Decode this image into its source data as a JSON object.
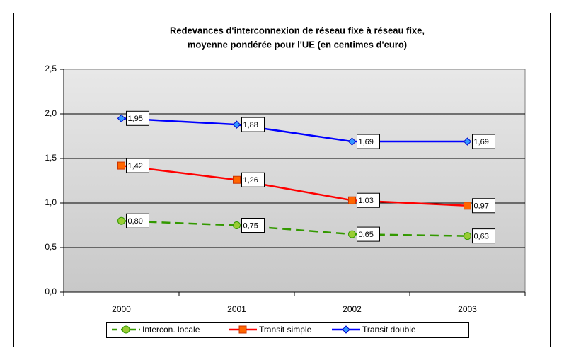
{
  "chart_data": {
    "type": "line",
    "title": [
      "Redevances d'interconnexion de réseau fixe à réseau fixe,",
      "moyenne pondérée pour l'UE (en centimes d'euro)"
    ],
    "categories": [
      "2000",
      "2001",
      "2002",
      "2003"
    ],
    "series": [
      {
        "name": "Intercon. locale",
        "color": "#339900",
        "marker_color": "#99cc33",
        "marker": "circle",
        "dashed": true,
        "values": [
          0.8,
          0.75,
          0.65,
          0.63
        ],
        "value_labels": [
          "0,80",
          "0,75",
          "0,65",
          "0,63"
        ]
      },
      {
        "name": "Transit simple",
        "color": "#ff0000",
        "marker_color": "#ff6600",
        "marker": "square",
        "dashed": false,
        "values": [
          1.42,
          1.26,
          1.03,
          0.97
        ],
        "value_labels": [
          "1,42",
          "1,26",
          "1,03",
          "0,97"
        ]
      },
      {
        "name": "Transit double",
        "color": "#0000ff",
        "marker_color": "#3399ff",
        "marker": "diamond",
        "dashed": false,
        "values": [
          1.95,
          1.88,
          1.69,
          1.69
        ],
        "value_labels": [
          "1,95",
          "1,88",
          "1,69",
          "1,69"
        ]
      }
    ],
    "ylim": [
      0,
      2.5
    ],
    "yticks": [
      {
        "value": 0,
        "label": "0,0"
      },
      {
        "value": 0.5,
        "label": "0,5"
      },
      {
        "value": 1,
        "label": "1,0"
      },
      {
        "value": 1.5,
        "label": "1,5"
      },
      {
        "value": 2,
        "label": "2,0"
      },
      {
        "value": 2.5,
        "label": "2,5"
      }
    ],
    "grid": true,
    "legend_position": "bottom"
  }
}
